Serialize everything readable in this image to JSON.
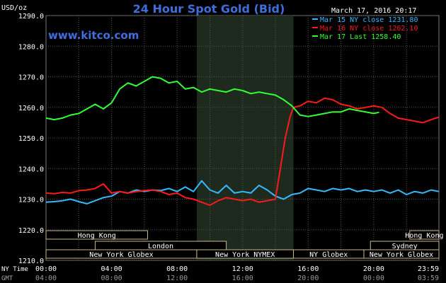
{
  "header": {
    "title": "24 Hour Spot Gold (Bid)",
    "datetime": "March 17, 2016 20:17",
    "website": "www.kitco.com",
    "y_unit": "USD/oz"
  },
  "legend": [
    {
      "text": "Mar 15 NY close 1231.80",
      "color": "#33bbff"
    },
    {
      "text": "Mar 16 NY close 1262.10",
      "color": "#ff1a1a"
    },
    {
      "text": "Mar 17 Last 1258.40",
      "color": "#33ff33"
    }
  ],
  "time_axes": {
    "ny_label": [
      "NY Time",
      "GMT"
    ],
    "ny_ticks": [
      "00:00",
      "04:00",
      "08:00",
      "12:00",
      "16:00",
      "20:00",
      "23:59"
    ],
    "gmt_ticks": [
      "04:00",
      "08:00",
      "12:00",
      "16:00",
      "20:00",
      "00:00",
      "03:59"
    ]
  },
  "sessions": [
    {
      "label": "Hong Kong",
      "row": 0,
      "start": 0,
      "end": 6.2
    },
    {
      "label": "Hong Kong",
      "row": 0,
      "start": 22.2,
      "end": 23.98
    },
    {
      "label": "London",
      "row": 1,
      "start": 3,
      "end": 11
    },
    {
      "label": "Sydney",
      "row": 1,
      "start": 19.8,
      "end": 23.98
    },
    {
      "label": "New York Globex",
      "row": 2,
      "start": 0,
      "end": 9.2
    },
    {
      "label": "New York NYMEX",
      "row": 2,
      "start": 9.2,
      "end": 15.1
    },
    {
      "label": "NY Globex",
      "row": 2,
      "start": 15.1,
      "end": 19.4
    },
    {
      "label": "New York Globex",
      "row": 2,
      "start": 19.4,
      "end": 23.98
    }
  ],
  "chart_data": {
    "type": "line",
    "title": "24 Hour Spot Gold (Bid)",
    "ylabel": "USD/oz",
    "xlabel": "NY Time / GMT",
    "x_unit": "hours (NY time)",
    "xlim": [
      0,
      23.98
    ],
    "ylim": [
      1210,
      1290
    ],
    "y_ticks": [
      1210.0,
      1220.0,
      1230.0,
      1240.0,
      1250.0,
      1260.0,
      1270.0,
      1280.0,
      1290.0
    ],
    "y_tick_labels": [
      "1210.0",
      "1220.0",
      "1230.0",
      "1240.0",
      "1250.0",
      "1260.0",
      "1270.0",
      "1280.0",
      "1290.0"
    ],
    "grid": true,
    "shaded_range": [
      9.2,
      15.1
    ],
    "series": [
      {
        "name": "Mar 15 NY close 1231.80",
        "color": "#33bbff",
        "x": [
          0,
          0.5,
          1,
          1.5,
          2,
          2.5,
          3,
          3.5,
          4,
          4.5,
          5,
          5.5,
          6,
          6.5,
          7,
          7.5,
          8,
          8.5,
          9,
          9.5,
          10,
          10.5,
          11,
          11.5,
          12,
          12.5,
          13,
          13.5,
          14,
          14.5,
          15,
          15.5,
          16,
          16.5,
          17,
          17.5,
          18,
          18.5,
          19,
          19.5,
          20,
          20.5,
          21,
          21.5,
          22,
          22.5,
          23,
          23.5,
          23.98
        ],
        "y": [
          1229.0,
          1229.2,
          1229.5,
          1230.0,
          1229.2,
          1228.5,
          1229.5,
          1230.5,
          1231.0,
          1232.5,
          1232.0,
          1233.0,
          1232.5,
          1233.0,
          1232.8,
          1233.5,
          1232.5,
          1234.0,
          1232.5,
          1236.0,
          1233.0,
          1232.0,
          1234.5,
          1232.0,
          1232.5,
          1232.0,
          1234.5,
          1233.0,
          1231.0,
          1230.0,
          1231.5,
          1232.0,
          1233.5,
          1233.0,
          1232.5,
          1233.5,
          1233.0,
          1233.5,
          1232.5,
          1233.0,
          1232.5,
          1233.0,
          1232.0,
          1233.0,
          1231.5,
          1232.5,
          1232.0,
          1233.0,
          1232.5
        ]
      },
      {
        "name": "Mar 16 NY close 1262.10",
        "color": "#ff1a1a",
        "x": [
          0,
          0.5,
          1,
          1.5,
          2,
          2.5,
          3,
          3.5,
          4,
          4.5,
          5,
          5.5,
          6,
          6.5,
          7,
          7.5,
          8,
          8.5,
          9,
          9.5,
          10,
          10.5,
          11,
          11.5,
          12,
          12.5,
          13,
          13.5,
          14,
          14.3,
          14.6,
          14.9,
          15.1,
          15.5,
          16,
          16.5,
          17,
          17.5,
          18,
          18.5,
          19,
          19.5,
          20,
          20.5,
          21,
          21.5,
          22,
          22.5,
          23,
          23.5,
          23.98
        ],
        "y": [
          1232.0,
          1231.8,
          1232.2,
          1232.0,
          1232.8,
          1233.0,
          1233.5,
          1235.0,
          1232.0,
          1232.5,
          1232.0,
          1232.5,
          1232.8,
          1233.0,
          1232.5,
          1231.5,
          1232.0,
          1230.5,
          1230.0,
          1229.0,
          1228.0,
          1229.5,
          1230.5,
          1230.0,
          1229.5,
          1230.0,
          1229.0,
          1229.5,
          1230.0,
          1240.0,
          1250.0,
          1257.0,
          1260.0,
          1260.5,
          1262.0,
          1261.5,
          1263.0,
          1262.5,
          1261.0,
          1260.5,
          1259.5,
          1260.0,
          1260.5,
          1260.0,
          1258.0,
          1256.5,
          1256.0,
          1255.5,
          1255.0,
          1256.0,
          1256.8
        ]
      },
      {
        "name": "Mar 17 Last 1258.40",
        "color": "#33ff33",
        "x": [
          0,
          0.5,
          1,
          1.5,
          2,
          2.5,
          3,
          3.5,
          4,
          4.5,
          5,
          5.5,
          6,
          6.5,
          7,
          7.5,
          8,
          8.5,
          9,
          9.5,
          10,
          10.5,
          11,
          11.5,
          12,
          12.5,
          13,
          13.5,
          14,
          14.5,
          15,
          15.5,
          16,
          16.5,
          17,
          17.5,
          18,
          18.5,
          19,
          19.5,
          20,
          20.33
        ],
        "y": [
          1256.5,
          1256.0,
          1256.5,
          1257.5,
          1258.0,
          1259.5,
          1261.0,
          1259.5,
          1261.5,
          1266.0,
          1268.0,
          1267.0,
          1268.5,
          1270.0,
          1269.5,
          1268.0,
          1268.5,
          1266.0,
          1266.5,
          1265.0,
          1266.0,
          1265.5,
          1265.0,
          1266.0,
          1265.5,
          1264.5,
          1265.0,
          1264.5,
          1264.0,
          1262.5,
          1260.5,
          1257.5,
          1257.0,
          1257.5,
          1258.0,
          1258.5,
          1258.5,
          1259.5,
          1259.0,
          1258.5,
          1258.0,
          1258.4
        ]
      }
    ]
  }
}
